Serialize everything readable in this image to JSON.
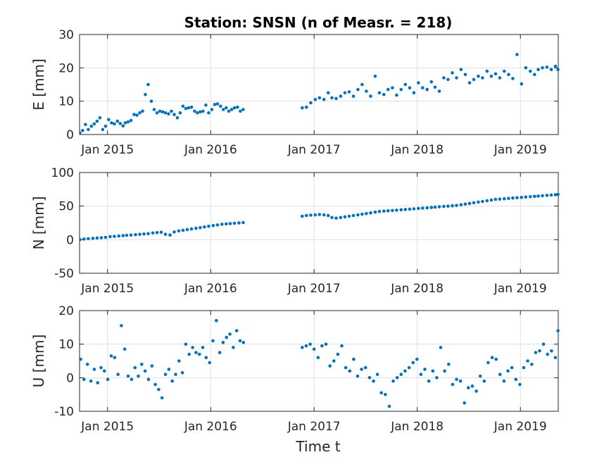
{
  "figure": {
    "title": "Station: SNSN (n of Measr. = 218)",
    "xlabel": "Time t",
    "x_ticks": [
      "Jan 2015",
      "Jan 2016",
      "Jan 2017",
      "Jan 2018",
      "Jan 2019"
    ],
    "marker_color": "#0072BD"
  },
  "chart_data": [
    {
      "type": "scatter",
      "ylabel": "E [mm]",
      "ylim": [
        0,
        30
      ],
      "yticks": [
        0,
        10,
        20,
        30
      ],
      "xlim": [
        "2014-09-24",
        "2019-05-15"
      ],
      "grid": true,
      "x": [
        "2014-09-25",
        "2014-10-05",
        "2014-10-15",
        "2014-10-25",
        "2014-11-05",
        "2014-11-15",
        "2014-11-25",
        "2014-12-05",
        "2014-12-15",
        "2014-12-25",
        "2015-01-05",
        "2015-01-15",
        "2015-01-25",
        "2015-02-05",
        "2015-02-15",
        "2015-02-25",
        "2015-03-05",
        "2015-03-15",
        "2015-03-25",
        "2015-04-05",
        "2015-04-15",
        "2015-04-25",
        "2015-05-05",
        "2015-05-15",
        "2015-05-25",
        "2015-06-05",
        "2015-06-15",
        "2015-06-25",
        "2015-07-05",
        "2015-07-15",
        "2015-07-25",
        "2015-08-05",
        "2015-08-15",
        "2015-08-25",
        "2015-09-05",
        "2015-09-15",
        "2015-09-25",
        "2015-10-05",
        "2015-10-15",
        "2015-10-25",
        "2015-11-05",
        "2015-11-15",
        "2015-11-25",
        "2015-12-05",
        "2015-12-15",
        "2015-12-25",
        "2016-01-05",
        "2016-01-15",
        "2016-01-25",
        "2016-02-05",
        "2016-02-15",
        "2016-02-25",
        "2016-03-05",
        "2016-03-15",
        "2016-03-25",
        "2016-04-05",
        "2016-04-15",
        "2016-04-25",
        "2016-11-20",
        "2016-12-05",
        "2016-12-20",
        "2017-01-05",
        "2017-01-20",
        "2017-02-05",
        "2017-02-20",
        "2017-03-05",
        "2017-03-20",
        "2017-04-05",
        "2017-04-20",
        "2017-05-05",
        "2017-05-20",
        "2017-06-05",
        "2017-06-20",
        "2017-07-05",
        "2017-07-20",
        "2017-08-05",
        "2017-08-20",
        "2017-09-05",
        "2017-09-20",
        "2017-10-05",
        "2017-10-20",
        "2017-11-05",
        "2017-11-20",
        "2017-12-05",
        "2017-12-20",
        "2018-01-05",
        "2018-01-20",
        "2018-02-05",
        "2018-02-20",
        "2018-03-05",
        "2018-03-20",
        "2018-04-05",
        "2018-04-20",
        "2018-05-05",
        "2018-05-20",
        "2018-06-05",
        "2018-06-20",
        "2018-07-05",
        "2018-07-20",
        "2018-08-05",
        "2018-08-20",
        "2018-09-05",
        "2018-09-20",
        "2018-10-05",
        "2018-10-20",
        "2018-11-05",
        "2018-11-20",
        "2018-12-05",
        "2018-12-20",
        "2019-01-05",
        "2019-01-20",
        "2019-02-05",
        "2019-02-20",
        "2019-03-05",
        "2019-03-20",
        "2019-04-05",
        "2019-04-20",
        "2019-05-05",
        "2019-05-14"
      ],
      "values": [
        0.5,
        1.2,
        3,
        1.5,
        2.5,
        3.2,
        4,
        5,
        1.5,
        2.5,
        4.5,
        3.5,
        3.2,
        4,
        3.3,
        2.6,
        3.5,
        3.8,
        4.2,
        6,
        5.8,
        6.5,
        7,
        12,
        15,
        10,
        7.5,
        6.5,
        7,
        6.8,
        6.5,
        6.2,
        7,
        6,
        5,
        6.5,
        8.5,
        7.8,
        8,
        8.2,
        7,
        6.5,
        6.8,
        7,
        8.8,
        6.5,
        7.5,
        9,
        9.2,
        8.5,
        7.5,
        8,
        7,
        7.5,
        8,
        8.2,
        7,
        7.5,
        8,
        8.2,
        9.5,
        10.5,
        11,
        10.5,
        12.5,
        11,
        10.8,
        11.5,
        12.5,
        12.8,
        11.5,
        13.5,
        15,
        13,
        11.5,
        17.5,
        12.5,
        12,
        13.5,
        14,
        11.8,
        13.5,
        15,
        14,
        12.5,
        15.5,
        14,
        13.5,
        15.8,
        14.2,
        13,
        17,
        16.5,
        18.5,
        17,
        19.5,
        18,
        15.5,
        16.5,
        17.5,
        17,
        19,
        17.5,
        18.2,
        17,
        19,
        18,
        16.8,
        24,
        15.2,
        20,
        19,
        18,
        19.5,
        20,
        20.2,
        19.5,
        20.5,
        19.5
      ]
    },
    {
      "type": "scatter",
      "ylabel": "N [mm]",
      "ylim": [
        -50,
        100
      ],
      "yticks": [
        -50,
        0,
        50,
        100
      ],
      "xlim": [
        "2014-09-24",
        "2019-05-15"
      ],
      "grid": true,
      "x": [
        "2014-09-25",
        "2014-10-10",
        "2014-10-25",
        "2014-11-10",
        "2014-11-25",
        "2014-12-10",
        "2014-12-25",
        "2015-01-10",
        "2015-01-25",
        "2015-02-10",
        "2015-02-25",
        "2015-03-10",
        "2015-03-25",
        "2015-04-10",
        "2015-04-25",
        "2015-05-10",
        "2015-05-25",
        "2015-06-10",
        "2015-06-25",
        "2015-07-10",
        "2015-07-25",
        "2015-08-10",
        "2015-08-25",
        "2015-09-10",
        "2015-09-25",
        "2015-10-10",
        "2015-10-25",
        "2015-11-10",
        "2015-11-25",
        "2015-12-10",
        "2015-12-25",
        "2016-01-10",
        "2016-01-25",
        "2016-02-10",
        "2016-02-25",
        "2016-03-10",
        "2016-03-25",
        "2016-04-10",
        "2016-04-25",
        "2016-11-20",
        "2016-12-05",
        "2016-12-20",
        "2017-01-05",
        "2017-01-20",
        "2017-02-05",
        "2017-02-20",
        "2017-03-05",
        "2017-03-20",
        "2017-04-05",
        "2017-04-20",
        "2017-05-05",
        "2017-05-20",
        "2017-06-05",
        "2017-06-20",
        "2017-07-05",
        "2017-07-20",
        "2017-08-05",
        "2017-08-20",
        "2017-09-05",
        "2017-09-20",
        "2017-10-05",
        "2017-10-20",
        "2017-11-05",
        "2017-11-20",
        "2017-12-05",
        "2017-12-20",
        "2018-01-05",
        "2018-01-20",
        "2018-02-05",
        "2018-02-20",
        "2018-03-05",
        "2018-03-20",
        "2018-04-05",
        "2018-04-20",
        "2018-05-05",
        "2018-05-20",
        "2018-06-05",
        "2018-06-20",
        "2018-07-05",
        "2018-07-20",
        "2018-08-05",
        "2018-08-20",
        "2018-09-05",
        "2018-09-20",
        "2018-10-05",
        "2018-10-20",
        "2018-11-05",
        "2018-11-20",
        "2018-12-05",
        "2018-12-20",
        "2019-01-05",
        "2019-01-20",
        "2019-02-05",
        "2019-02-20",
        "2019-03-05",
        "2019-03-20",
        "2019-04-05",
        "2019-04-20",
        "2019-05-05",
        "2019-05-14"
      ],
      "values": [
        0,
        1,
        1.5,
        2,
        2.5,
        3,
        3.5,
        4.5,
        5,
        5.5,
        6,
        6.5,
        7,
        7.5,
        8,
        8.5,
        9,
        10,
        10.5,
        11,
        8,
        7,
        11.5,
        13,
        14,
        15,
        16,
        17,
        18,
        19,
        20,
        21,
        22,
        23,
        23.5,
        24,
        24.5,
        25,
        25.5,
        35,
        36,
        36.5,
        37,
        37.5,
        37,
        36,
        33,
        32,
        33,
        34,
        35,
        36,
        37,
        38,
        39,
        40,
        41,
        42,
        42.5,
        43,
        43.5,
        44,
        44.5,
        45,
        45.5,
        46,
        46.5,
        47,
        47.5,
        48,
        48.5,
        49,
        49.5,
        50,
        50.5,
        51,
        52,
        53,
        54,
        55,
        56,
        57,
        58,
        59,
        60,
        60.5,
        61,
        61.5,
        62,
        62.5,
        63,
        63.5,
        64,
        64.5,
        65,
        65.5,
        66,
        66.5,
        67,
        67.5
      ]
    },
    {
      "type": "scatter",
      "ylabel": "U [mm]",
      "ylim": [
        -10,
        20
      ],
      "yticks": [
        -10,
        0,
        10,
        20
      ],
      "xlim": [
        "2014-09-24",
        "2019-05-15"
      ],
      "grid": true,
      "x": [
        "2014-09-28",
        "2014-10-10",
        "2014-10-22",
        "2014-11-03",
        "2014-11-15",
        "2014-11-27",
        "2014-12-09",
        "2014-12-21",
        "2015-01-02",
        "2015-01-14",
        "2015-01-26",
        "2015-02-07",
        "2015-02-19",
        "2015-03-03",
        "2015-03-15",
        "2015-03-27",
        "2015-04-08",
        "2015-04-20",
        "2015-05-02",
        "2015-05-14",
        "2015-05-26",
        "2015-06-07",
        "2015-06-19",
        "2015-07-01",
        "2015-07-13",
        "2015-07-25",
        "2015-08-06",
        "2015-08-18",
        "2015-08-30",
        "2015-09-11",
        "2015-09-23",
        "2015-10-05",
        "2015-10-17",
        "2015-10-29",
        "2015-11-10",
        "2015-11-22",
        "2015-12-04",
        "2015-12-16",
        "2015-12-28",
        "2016-01-09",
        "2016-01-21",
        "2016-02-02",
        "2016-02-14",
        "2016-02-26",
        "2016-03-09",
        "2016-03-21",
        "2016-04-02",
        "2016-04-14",
        "2016-04-26",
        "2016-11-20",
        "2016-12-04",
        "2016-12-18",
        "2017-01-01",
        "2017-01-15",
        "2017-01-29",
        "2017-02-12",
        "2017-02-26",
        "2017-03-12",
        "2017-03-26",
        "2017-04-09",
        "2017-04-23",
        "2017-05-07",
        "2017-05-21",
        "2017-06-04",
        "2017-06-18",
        "2017-07-02",
        "2017-07-16",
        "2017-07-30",
        "2017-08-13",
        "2017-08-27",
        "2017-09-10",
        "2017-09-24",
        "2017-10-08",
        "2017-10-22",
        "2017-11-05",
        "2017-11-19",
        "2017-12-03",
        "2017-12-17",
        "2017-12-31",
        "2018-01-14",
        "2018-01-28",
        "2018-02-11",
        "2018-02-25",
        "2018-03-11",
        "2018-03-25",
        "2018-04-08",
        "2018-04-22",
        "2018-05-06",
        "2018-05-20",
        "2018-06-03",
        "2018-06-17",
        "2018-07-01",
        "2018-07-15",
        "2018-07-29",
        "2018-08-12",
        "2018-08-26",
        "2018-09-09",
        "2018-09-23",
        "2018-10-07",
        "2018-10-21",
        "2018-11-04",
        "2018-11-18",
        "2018-12-02",
        "2018-12-16",
        "2018-12-30",
        "2019-01-13",
        "2019-01-27",
        "2019-02-10",
        "2019-02-24",
        "2019-03-10",
        "2019-03-24",
        "2019-04-07",
        "2019-04-21",
        "2019-05-05",
        "2019-05-14"
      ],
      "values": [
        5.5,
        -0.5,
        4,
        -1,
        2.5,
        -1.5,
        3,
        2,
        -0.5,
        6.5,
        6,
        1,
        15.5,
        8.5,
        0.5,
        -0.5,
        3,
        0.5,
        4,
        2,
        -0.5,
        3.5,
        -2,
        -3.5,
        -6,
        1,
        2.5,
        -1,
        1,
        5,
        1.5,
        10,
        7,
        9,
        7.5,
        7,
        9,
        6,
        4.5,
        11,
        17,
        7.5,
        10.5,
        12,
        13,
        9,
        14,
        11,
        10.5,
        9,
        9.5,
        10,
        8.5,
        6,
        9.5,
        10,
        3.5,
        5,
        7,
        9.5,
        3,
        2,
        5.5,
        0.5,
        2.5,
        3,
        0,
        -1,
        1,
        -4.5,
        -5,
        -8.5,
        -1,
        0,
        1,
        2,
        3,
        4.5,
        5.5,
        1,
        2.5,
        -1,
        2,
        0,
        9,
        2,
        4,
        -2,
        -0.5,
        -1,
        -7.5,
        -3,
        -2.5,
        -4,
        0.5,
        -1,
        4.5,
        6,
        5.5,
        1,
        -1,
        2,
        3,
        -0.5,
        -2,
        3,
        5,
        4,
        7.5,
        8,
        10,
        7,
        8,
        6,
        14
      ]
    }
  ]
}
